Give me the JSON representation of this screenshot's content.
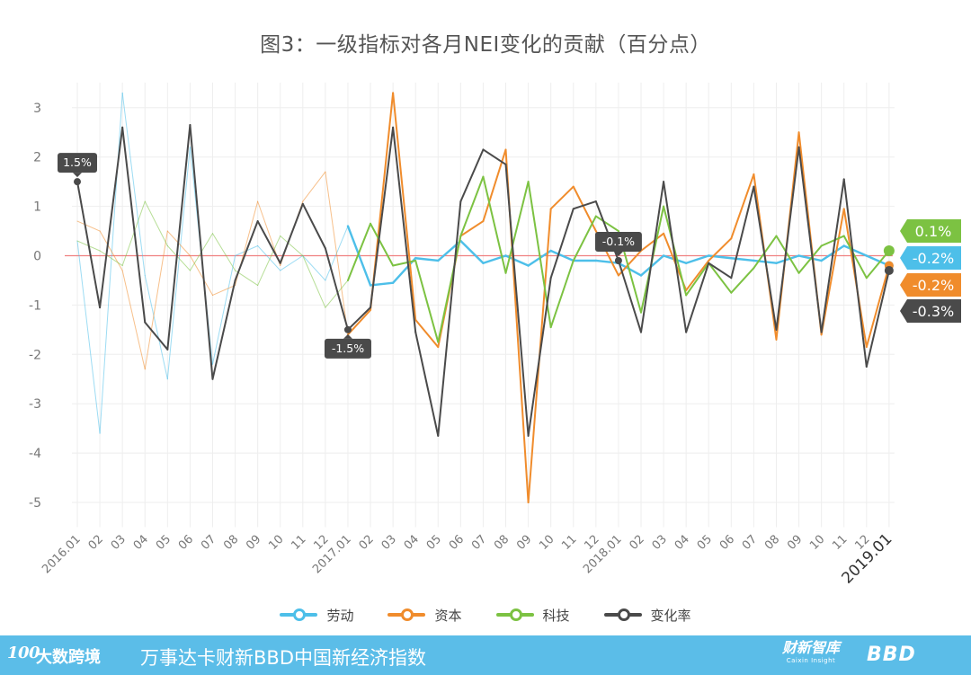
{
  "title": "图3：一级指标对各月NEI变化的贡献（百分点）",
  "legend": [
    {
      "name": "劳动",
      "color": "#4dbfe9"
    },
    {
      "name": "资本",
      "color": "#f08c2c"
    },
    {
      "name": "科技",
      "color": "#7cc242"
    },
    {
      "name": "变化率",
      "color": "#4a4a4a"
    }
  ],
  "footer": {
    "logo_number": "100",
    "logo_text": "大数跨境",
    "title": "万事达卡财新BBD中国新经济指数",
    "caixin_cn": "财新智库",
    "caixin_en": "Caixin Insight",
    "bbd": "BBD"
  },
  "chart_data": {
    "type": "line",
    "title": "图3：一级指标对各月NEI变化的贡献（百分点）",
    "xlabel": "",
    "ylabel": "",
    "ylim": [
      -5.5,
      3.4
    ],
    "yticks": [
      3,
      2,
      1,
      0,
      -1,
      -2,
      -3,
      -4,
      -5
    ],
    "grid": true,
    "legend_position": "bottom",
    "categories": [
      "2016.01",
      "02",
      "03",
      "04",
      "05",
      "06",
      "07",
      "08",
      "09",
      "10",
      "11",
      "12",
      "2017.01",
      "02",
      "03",
      "04",
      "05",
      "06",
      "07",
      "08",
      "09",
      "10",
      "11",
      "12",
      "2018.01",
      "02",
      "03",
      "04",
      "05",
      "06",
      "07",
      "08",
      "09",
      "10",
      "11",
      "12",
      "2019.01"
    ],
    "series": [
      {
        "name": "劳动",
        "color": "#4dbfe9",
        "values": [
          0.3,
          -3.6,
          3.3,
          -0.4,
          -2.5,
          2.2,
          -2.2,
          0.0,
          0.2,
          -0.3,
          0.0,
          -0.5,
          0.6,
          -0.6,
          -0.55,
          -0.05,
          -0.1,
          0.3,
          -0.15,
          -0.0,
          -0.2,
          0.1,
          -0.1,
          -0.1,
          -0.15,
          -0.4,
          0.0,
          -0.15,
          -0.0,
          -0.05,
          -0.1,
          -0.15,
          0.0,
          -0.1,
          0.2,
          0.0,
          -0.2
        ]
      },
      {
        "name": "资本",
        "color": "#f08c2c",
        "values": [
          0.7,
          0.5,
          -0.3,
          -2.3,
          0.5,
          0.0,
          -0.8,
          -0.6,
          1.1,
          -0.2,
          1.1,
          1.7,
          -1.6,
          -1.1,
          3.3,
          -1.3,
          -1.85,
          0.4,
          0.7,
          2.15,
          -5.0,
          0.95,
          1.4,
          0.5,
          -0.4,
          0.1,
          0.45,
          -0.7,
          -0.1,
          0.35,
          1.65,
          -1.7,
          2.5,
          -1.6,
          0.95,
          -1.85,
          -0.2
        ]
      },
      {
        "name": "科技",
        "color": "#7cc242",
        "values": [
          0.3,
          0.1,
          -0.2,
          1.1,
          0.2,
          -0.3,
          0.45,
          -0.3,
          -0.6,
          0.4,
          0.0,
          -1.05,
          -0.5,
          0.65,
          -0.2,
          -0.1,
          -1.75,
          0.4,
          1.6,
          -0.35,
          1.5,
          -1.45,
          -0.1,
          0.8,
          0.5,
          -1.15,
          1.0,
          -0.8,
          -0.15,
          -0.75,
          -0.25,
          0.4,
          -0.35,
          0.2,
          0.4,
          -0.45,
          0.1
        ]
      },
      {
        "name": "变化率",
        "color": "#4a4a4a",
        "values": [
          1.5,
          -1.05,
          2.6,
          -1.35,
          -1.9,
          2.65,
          -2.5,
          -0.5,
          0.7,
          -0.15,
          1.05,
          0.15,
          -1.5,
          -1.05,
          2.6,
          -1.55,
          -3.65,
          1.1,
          2.15,
          1.85,
          -3.65,
          -0.45,
          0.95,
          1.1,
          -0.1,
          -1.55,
          1.5,
          -1.55,
          -0.15,
          -0.45,
          1.4,
          -1.5,
          2.2,
          -1.55,
          1.55,
          -2.25,
          -0.3
        ]
      }
    ],
    "annotations": [
      {
        "series": "变化率",
        "index": 0,
        "text": "1.5%"
      },
      {
        "series": "变化率",
        "index": 12,
        "text": "-1.5%"
      },
      {
        "series": "变化率",
        "index": 24,
        "text": "-0.1%"
      }
    ],
    "end_labels": [
      {
        "series": "科技",
        "text": "0.1%"
      },
      {
        "series": "劳动",
        "text": "-0.2%"
      },
      {
        "series": "资本",
        "text": "-0.2%"
      },
      {
        "series": "变化率",
        "text": "-0.3%"
      }
    ],
    "reference_line": {
      "y": 0,
      "color": "#f08080"
    }
  }
}
